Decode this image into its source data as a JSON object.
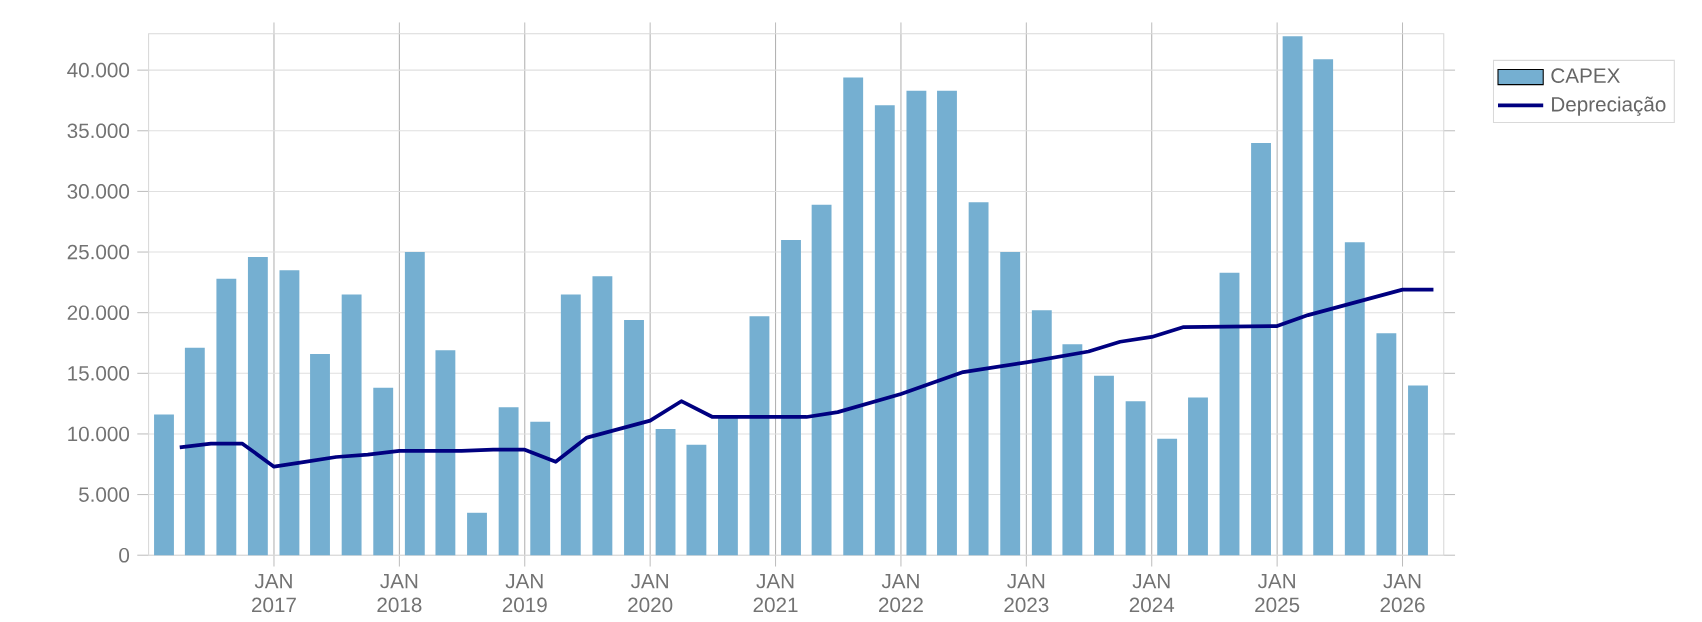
{
  "chart_data": {
    "type": "bar",
    "x": [
      "2016-02-15",
      "2016-05-15",
      "2016-08-15",
      "2016-11-15",
      "2017-02-15",
      "2017-05-15",
      "2017-08-15",
      "2017-11-15",
      "2018-02-15",
      "2018-05-15",
      "2018-08-15",
      "2018-11-15",
      "2019-02-15",
      "2019-05-15",
      "2019-08-15",
      "2019-11-15",
      "2020-02-15",
      "2020-05-15",
      "2020-08-15",
      "2020-11-15",
      "2021-02-15",
      "2021-05-15",
      "2021-08-15",
      "2021-11-15",
      "2022-02-15",
      "2022-05-15",
      "2022-08-15",
      "2022-11-15",
      "2023-02-15",
      "2023-05-15",
      "2023-08-15",
      "2023-11-15",
      "2024-02-15",
      "2024-05-15",
      "2024-08-15",
      "2024-11-15",
      "2025-02-15",
      "2025-05-15",
      "2025-08-15",
      "2025-11-15",
      "2026-02-15"
    ],
    "series": [
      {
        "name": "CAPEX",
        "color": "#75afd1",
        "values": [
          11600,
          17100,
          22800,
          24600,
          23500,
          16600,
          21500,
          13800,
          25000,
          16900,
          3500,
          12200,
          11000,
          21500,
          23000,
          19400,
          10400,
          9100,
          11500,
          19700,
          26000,
          28900,
          39400,
          37100,
          38300,
          38300,
          29100,
          25000,
          20200,
          17400,
          14800,
          12700,
          9600,
          13000,
          23300,
          34000,
          42800,
          40900,
          25800,
          18300,
          14000
        ]
      },
      {
        "name": "Depreciação",
        "type": "line",
        "color": "#000080",
        "x": [
          "2016-04-01",
          "2016-07-01",
          "2016-10-01",
          "2017-01-01",
          "2017-04-01",
          "2017-07-01",
          "2017-10-01",
          "2018-01-01",
          "2018-07-01",
          "2018-10-01",
          "2019-01-01",
          "2019-04-01",
          "2019-07-01",
          "2020-01-01",
          "2020-04-01",
          "2020-07-01",
          "2021-04-01",
          "2021-07-01",
          "2022-01-01",
          "2022-07-01",
          "2023-01-01",
          "2023-07-01",
          "2023-10-01",
          "2024-01-01",
          "2024-04-01",
          "2025-01-01",
          "2025-04-01",
          "2026-01-01",
          "2026-04-01"
        ],
        "values": [
          8900,
          9200,
          9200,
          7300,
          7700,
          8100,
          8300,
          8600,
          8600,
          8700,
          8700,
          7700,
          9700,
          11100,
          12700,
          11400,
          11400,
          11800,
          13300,
          15100,
          15900,
          16800,
          17600,
          18000,
          18800,
          18900,
          19800,
          21900,
          21900
        ]
      }
    ],
    "xlim": [
      "2016-01-01",
      "2026-05-01"
    ],
    "xticks": [
      {
        "value": "2017-01-01",
        "label": "JAN 2017"
      },
      {
        "value": "2018-01-01",
        "label": "JAN 2018"
      },
      {
        "value": "2019-01-01",
        "label": "JAN 2019"
      },
      {
        "value": "2020-01-01",
        "label": "JAN 2020"
      },
      {
        "value": "2021-01-01",
        "label": "JAN 2021"
      },
      {
        "value": "2022-01-01",
        "label": "JAN 2022"
      },
      {
        "value": "2023-01-01",
        "label": "JAN 2023"
      },
      {
        "value": "2024-01-01",
        "label": "JAN 2024"
      },
      {
        "value": "2025-01-01",
        "label": "JAN 2025"
      },
      {
        "value": "2026-01-01",
        "label": "JAN 2026"
      }
    ],
    "ylim": [
      0,
      43000
    ],
    "yticks": [
      0,
      {
        "value": 5000,
        "label": "5.000"
      },
      {
        "value": 10000,
        "label": "10.000"
      },
      {
        "value": 15000,
        "label": "15.000"
      },
      {
        "value": 20000,
        "label": "20.000"
      },
      {
        "value": 25000,
        "label": "25.000"
      },
      {
        "value": 30000,
        "label": "30.000"
      },
      {
        "value": 35000,
        "label": "35.000"
      },
      {
        "value": 40000,
        "label": "40.000"
      }
    ],
    "grid": true,
    "legend": "top right"
  }
}
